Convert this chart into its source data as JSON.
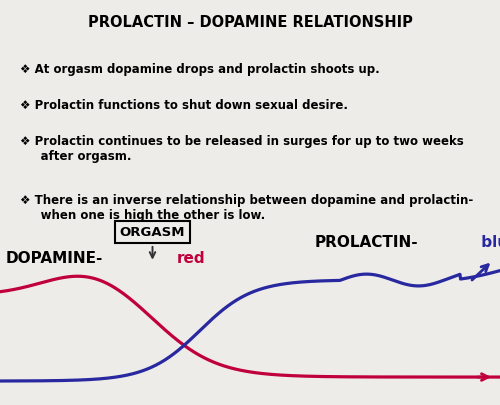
{
  "title": "PROLACTIN – DOPAMINE RELATIONSHIP",
  "background_color": "#eeece8",
  "bullet_points": [
    "At orgasm dopamine drops and prolactin shoots up.",
    "Prolactin functions to shut down sexual desire.",
    "Prolactin continues to be released in surges for up to two weeks after orgasm.",
    "There is an inverse relationship between dopamine and prolactin- when one is high the other is low."
  ],
  "orgasm_label": "ORGASM",
  "dopamine_label": "DOPAMINE-",
  "dopamine_color_label": "red",
  "prolactin_label": "PROLACTIN-",
  "prolactin_color_label": " blue",
  "dopamine_color": "#c0003c",
  "prolactin_color": "#2828a0",
  "title_fontsize": 10.5,
  "bullet_fontsize": 8.5,
  "label_fontsize": 11
}
